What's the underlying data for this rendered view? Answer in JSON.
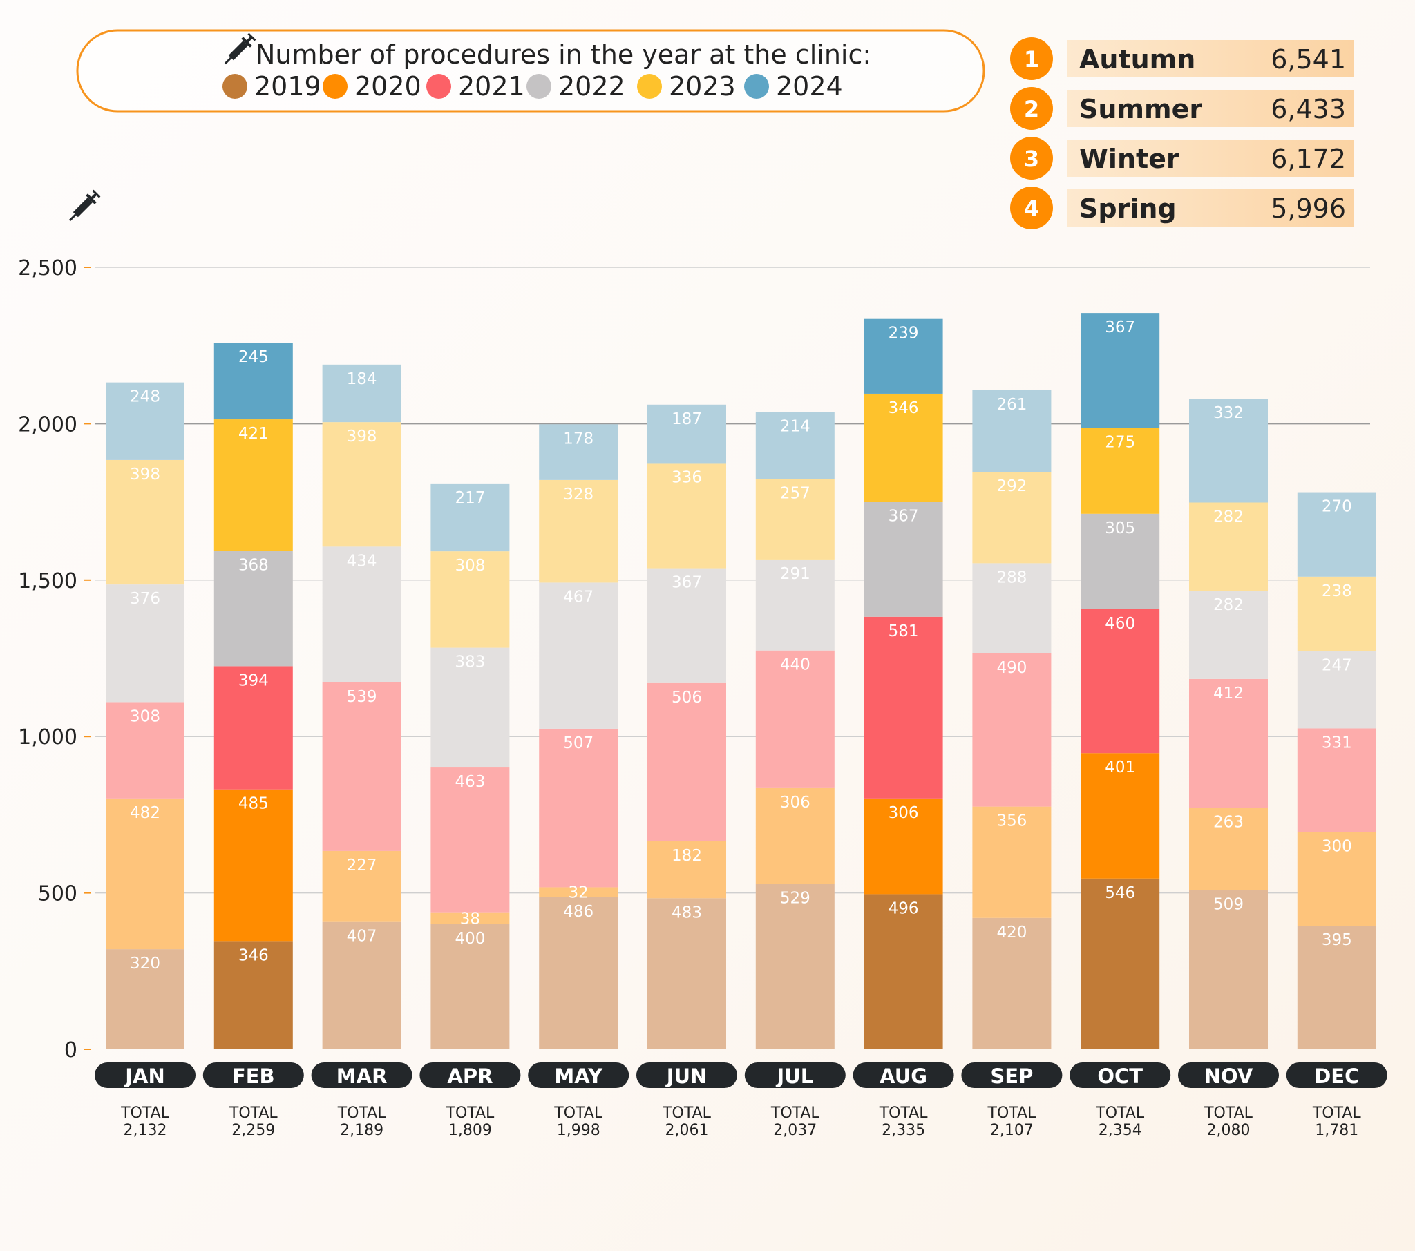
{
  "chart_data": {
    "type": "bar",
    "stacked": true,
    "title": "Number of procedures in the year at the clinic:",
    "xlabel": "",
    "ylabel": "",
    "ylim": [
      0,
      2500
    ],
    "yticks": [
      0,
      500,
      1000,
      1500,
      2000,
      2500
    ],
    "ytick_labels": [
      "0",
      "500",
      "1,000",
      "1,500",
      "2,000",
      "2,500"
    ],
    "grid": true,
    "legend_position": "top",
    "categories": [
      "JAN",
      "FEB",
      "MAR",
      "APR",
      "MAY",
      "JUN",
      "JUL",
      "AUG",
      "SEP",
      "OCT",
      "NOV",
      "DEC"
    ],
    "highlighted_categories": [
      "FEB",
      "AUG",
      "OCT"
    ],
    "total_label": "TOTAL",
    "totals": [
      "2,132",
      "2,259",
      "2,189",
      "1,809",
      "1,998",
      "2,061",
      "2,037",
      "2,335",
      "2,107",
      "2,354",
      "2,080",
      "1,781"
    ],
    "series": [
      {
        "name": "2019",
        "color": "#c17b37",
        "pale_color": "#e1b897",
        "values": [
          320,
          346,
          407,
          400,
          486,
          483,
          529,
          496,
          420,
          546,
          509,
          395
        ]
      },
      {
        "name": "2020",
        "color": "#ff8c00",
        "pale_color": "#fec47b",
        "values": [
          482,
          485,
          227,
          38,
          32,
          182,
          306,
          306,
          356,
          401,
          263,
          300
        ]
      },
      {
        "name": "2021",
        "color": "#fc6167",
        "pale_color": "#fdacab",
        "values": [
          308,
          394,
          539,
          463,
          507,
          506,
          440,
          581,
          490,
          460,
          412,
          331
        ]
      },
      {
        "name": "2022",
        "color": "#c5c3c4",
        "pale_color": "#e3e0df",
        "values": [
          376,
          368,
          434,
          383,
          467,
          367,
          291,
          367,
          288,
          305,
          282,
          247
        ]
      },
      {
        "name": "2023",
        "color": "#fec22c",
        "pale_color": "#fddf9b",
        "values": [
          398,
          421,
          398,
          308,
          328,
          336,
          257,
          346,
          292,
          275,
          282,
          238
        ]
      },
      {
        "name": "2024",
        "color": "#5ea5c5",
        "pale_color": "#b2d0dd",
        "values": [
          248,
          245,
          184,
          217,
          178,
          187,
          214,
          239,
          261,
          367,
          332,
          270
        ]
      }
    ]
  },
  "ranking": [
    {
      "rank": "1",
      "season": "Autumn",
      "value": "6,541"
    },
    {
      "rank": "2",
      "season": "Summer",
      "value": "6,433"
    },
    {
      "rank": "3",
      "season": "Winter",
      "value": "6,172"
    },
    {
      "rank": "4",
      "season": "Spring",
      "value": "5,996"
    }
  ],
  "colors": {
    "accent": "#ff8c00",
    "pill": "#23272a",
    "grid": "#bdbdbd"
  },
  "icons": [
    "syringe-icon"
  ]
}
